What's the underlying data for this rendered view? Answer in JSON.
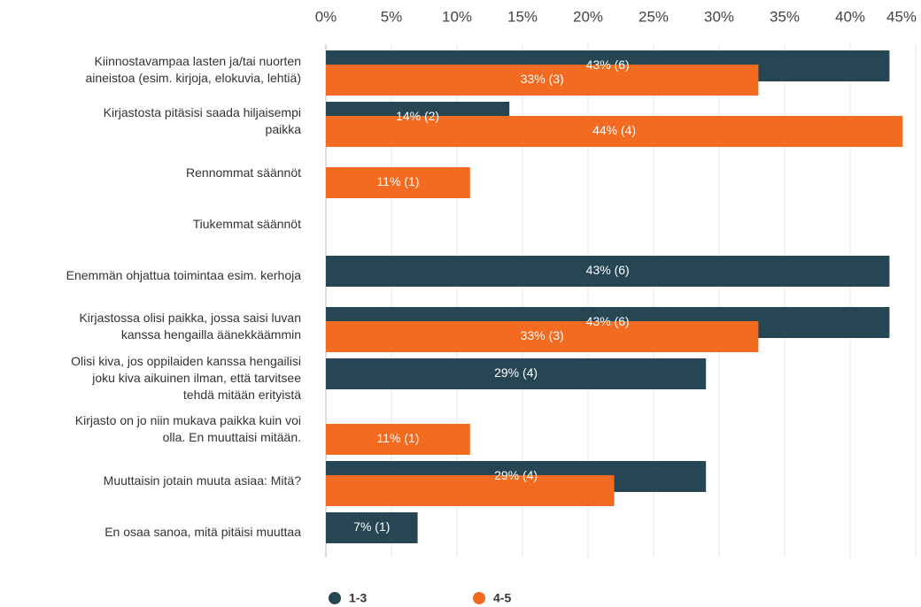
{
  "chart_data": {
    "type": "bar",
    "orientation": "horizontal",
    "categories": [
      "Kiinnostavampaa lasten ja/tai nuorten\naineistoa (esim. kirjoja, elokuvia, lehtiä)",
      "Kirjastosta pitäsisi saada hiljaisempi\npaikka",
      "Rennommat säännöt",
      "Tiukemmat säännöt",
      "Enemmän ohjattua toimintaa esim. kerhoja",
      "Kirjastossa olisi paikka, jossa saisi luvan\nkanssa hengailla äänekkäämmin",
      "Olisi kiva, jos oppilaiden kanssa hengailisi\njoku kiva aikuinen ilman, että tarvitsee\ntehdä mitään erityistä",
      "Kirjasto on jo niin mukava paikka kuin voi\nolla. En muuttaisi mitään.",
      "Muuttaisin jotain muuta asiaa: Mitä?",
      "En osaa sanoa, mitä pitäisi muuttaa"
    ],
    "series": [
      {
        "name": "1-3",
        "color": "#264653",
        "values": [
          43,
          14,
          null,
          null,
          43,
          43,
          29,
          null,
          29,
          7
        ],
        "value_labels": [
          "43% (6)",
          "14% (2)",
          null,
          null,
          "43% (6)",
          "43% (6)",
          "29% (4)",
          null,
          "29% (4)",
          "7% (1)"
        ]
      },
      {
        "name": "4-5",
        "color": "#f26b21",
        "values": [
          33,
          44,
          11,
          null,
          null,
          33,
          null,
          11,
          22,
          null
        ],
        "value_labels": [
          "33% (3)",
          "44% (4)",
          "11% (1)",
          null,
          null,
          "33% (3)",
          null,
          "11% (1)",
          null,
          null
        ]
      }
    ],
    "xlim": [
      0,
      45
    ],
    "xticks": [
      {
        "value": 0,
        "label": "0%"
      },
      {
        "value": 5,
        "label": "5%"
      },
      {
        "value": 10,
        "label": "10%"
      },
      {
        "value": 15,
        "label": "15%"
      },
      {
        "value": 20,
        "label": "20%"
      },
      {
        "value": 25,
        "label": "25%"
      },
      {
        "value": 30,
        "label": "30%"
      },
      {
        "value": 35,
        "label": "35%"
      },
      {
        "value": 40,
        "label": "40%"
      },
      {
        "value": 45,
        "label": "45%"
      }
    ],
    "grid": true
  }
}
